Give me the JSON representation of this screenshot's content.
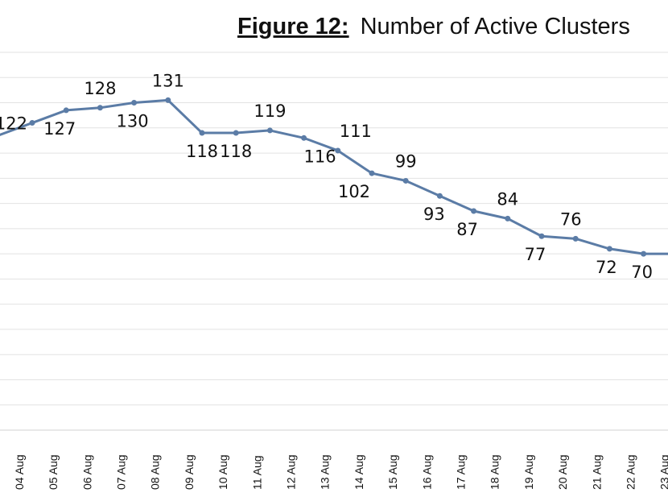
{
  "chart_data": {
    "type": "line",
    "title_prefix": "Figure 12:",
    "title_text": "Number of Active Clusters",
    "categories": [
      "04 Aug",
      "05 Aug",
      "06 Aug",
      "07 Aug",
      "08 Aug",
      "09 Aug",
      "10 Aug",
      "11 Aug",
      "12 Aug",
      "13 Aug",
      "14 Aug",
      "15 Aug",
      "16 Aug",
      "17 Aug",
      "18 Aug",
      "19 Aug",
      "20 Aug",
      "21 Aug",
      "22 Aug",
      "23 Aug"
    ],
    "series": [
      {
        "values": [
          122,
          127,
          128,
          130,
          131,
          118,
          118,
          119,
          116,
          111,
          102,
          99,
          93,
          87,
          84,
          77,
          76,
          72,
          70,
          70
        ],
        "labels": [
          "122",
          "127",
          "128",
          "130",
          "131",
          "118",
          "118",
          "119",
          "116",
          "111",
          "102",
          "99",
          "93",
          "87",
          "84",
          "77",
          "76",
          "72",
          "70",
          ""
        ],
        "color": "#5b7ca6"
      }
    ],
    "ylim": [
      0,
      150
    ],
    "grid": true,
    "xlabel": "",
    "ylabel": ""
  }
}
